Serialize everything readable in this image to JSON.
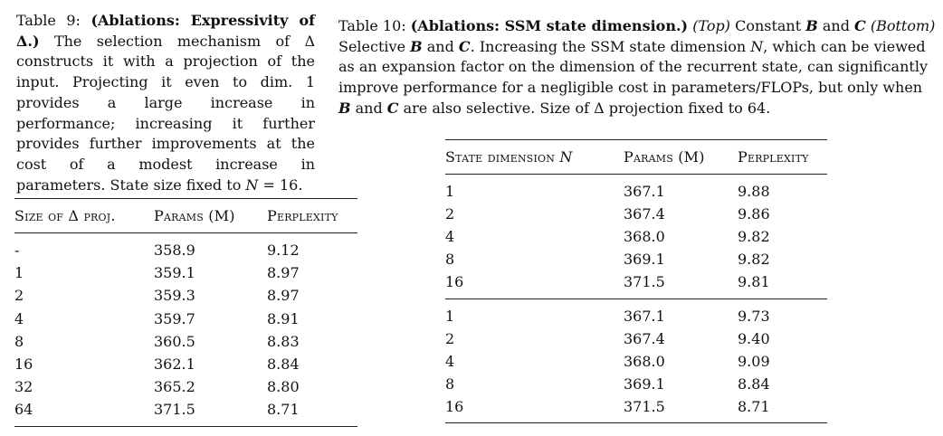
{
  "table9": {
    "caption": {
      "label": "Table 9:",
      "title": "(Ablations: Expressivity of Δ.)",
      "body": "The selection mechanism of Δ constructs it with a projection of the input. Projecting it even to dim. 1 provides a large increase in performance; increasing it further provides further improvements at the cost of a modest increase in parameters. State size fixed to",
      "tail_var": "N",
      "tail_rest": " = 16."
    },
    "headers": [
      "Size of Δ proj.",
      "Params (M)",
      "Perplexity"
    ],
    "rows": [
      [
        "-",
        "358.9",
        "9.12"
      ],
      [
        "1",
        "359.1",
        "8.97"
      ],
      [
        "2",
        "359.3",
        "8.97"
      ],
      [
        "4",
        "359.7",
        "8.91"
      ],
      [
        "8",
        "360.5",
        "8.83"
      ],
      [
        "16",
        "362.1",
        "8.84"
      ],
      [
        "32",
        "365.2",
        "8.80"
      ],
      [
        "64",
        "371.5",
        "8.71"
      ]
    ]
  },
  "table10": {
    "caption": {
      "label": "Table 10:",
      "title": "(Ablations: SSM state dimension.)",
      "top": "(Top)",
      "const": " Constant ",
      "B": "B",
      "and1": " and ",
      "C": "C",
      "bottom": " (Bottom)",
      "selective": " Selective ",
      "B2": "B",
      "and2": " and ",
      "C2": "C",
      "mid": ". Increasing the SSM state dimension ",
      "N": "N",
      "rest1": ", which can be viewed as an expansion factor on the dimension of the recurrent state, can significantly improve performance for a negligible cost in parameters/FLOPs, but only when ",
      "B3": "B",
      "and3": " and ",
      "C3": "C",
      "rest2": " are also selective. Size of Δ projection fixed to 64."
    },
    "headers": [
      "State dimension",
      "Params (M)",
      "Perplexity"
    ],
    "header_var": "N",
    "top_rows": [
      [
        "1",
        "367.1",
        "9.88"
      ],
      [
        "2",
        "367.4",
        "9.86"
      ],
      [
        "4",
        "368.0",
        "9.82"
      ],
      [
        "8",
        "369.1",
        "9.82"
      ],
      [
        "16",
        "371.5",
        "9.81"
      ]
    ],
    "bottom_rows": [
      [
        "1",
        "367.1",
        "9.73"
      ],
      [
        "2",
        "367.4",
        "9.40"
      ],
      [
        "4",
        "368.0",
        "9.09"
      ],
      [
        "8",
        "369.1",
        "8.84"
      ],
      [
        "16",
        "371.5",
        "8.71"
      ]
    ]
  }
}
